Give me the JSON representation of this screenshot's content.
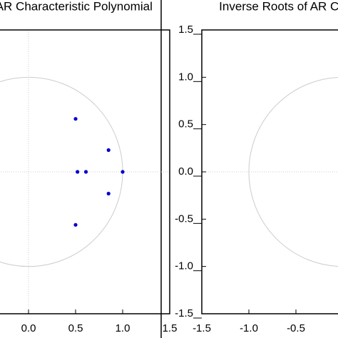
{
  "chart_data": [
    {
      "type": "scatter",
      "title": "Inverse Roots of AR Characteristic Polynomial",
      "x": [
        0.5,
        0.85,
        0.52,
        0.61,
        1.0,
        0.85,
        0.5
      ],
      "values": [
        0.56,
        0.23,
        0.0,
        0.0,
        0.0,
        -0.23,
        -0.56
      ],
      "color": "#0000cc",
      "xlim": [
        -1.5,
        1.5
      ],
      "ylim": [
        -1.5,
        1.5
      ],
      "xticks": [
        {
          "value": 0,
          "label": "0.0"
        },
        {
          "value": 0.5,
          "label": "0.5"
        },
        {
          "value": 1,
          "label": "1.0"
        },
        {
          "value": 1.5,
          "label": "1.5"
        }
      ],
      "unit_circle": true
    },
    {
      "type": "scatter",
      "title": "Inverse Roots of AR Characteristic Polynomial",
      "x": [],
      "values": [],
      "color": "#0000cc",
      "xlim": [
        -1.5,
        1.5
      ],
      "ylim": [
        -1.5,
        1.5
      ],
      "xticks": [
        {
          "value": -1.5,
          "label": "-1.5"
        },
        {
          "value": -1,
          "label": "-1.0"
        },
        {
          "value": -0.5,
          "label": "-0.5"
        }
      ],
      "yticks": [
        {
          "value": 1.5,
          "label": "1.5"
        },
        {
          "value": 1,
          "label": "1.0"
        },
        {
          "value": 0.5,
          "label": "0.5"
        },
        {
          "value": 0,
          "label": "0.0"
        },
        {
          "value": -0.5,
          "label": "-0.5"
        },
        {
          "value": -1,
          "label": "-1.0"
        },
        {
          "value": -1.5,
          "label": "-1.5"
        }
      ],
      "unit_circle": true
    }
  ]
}
